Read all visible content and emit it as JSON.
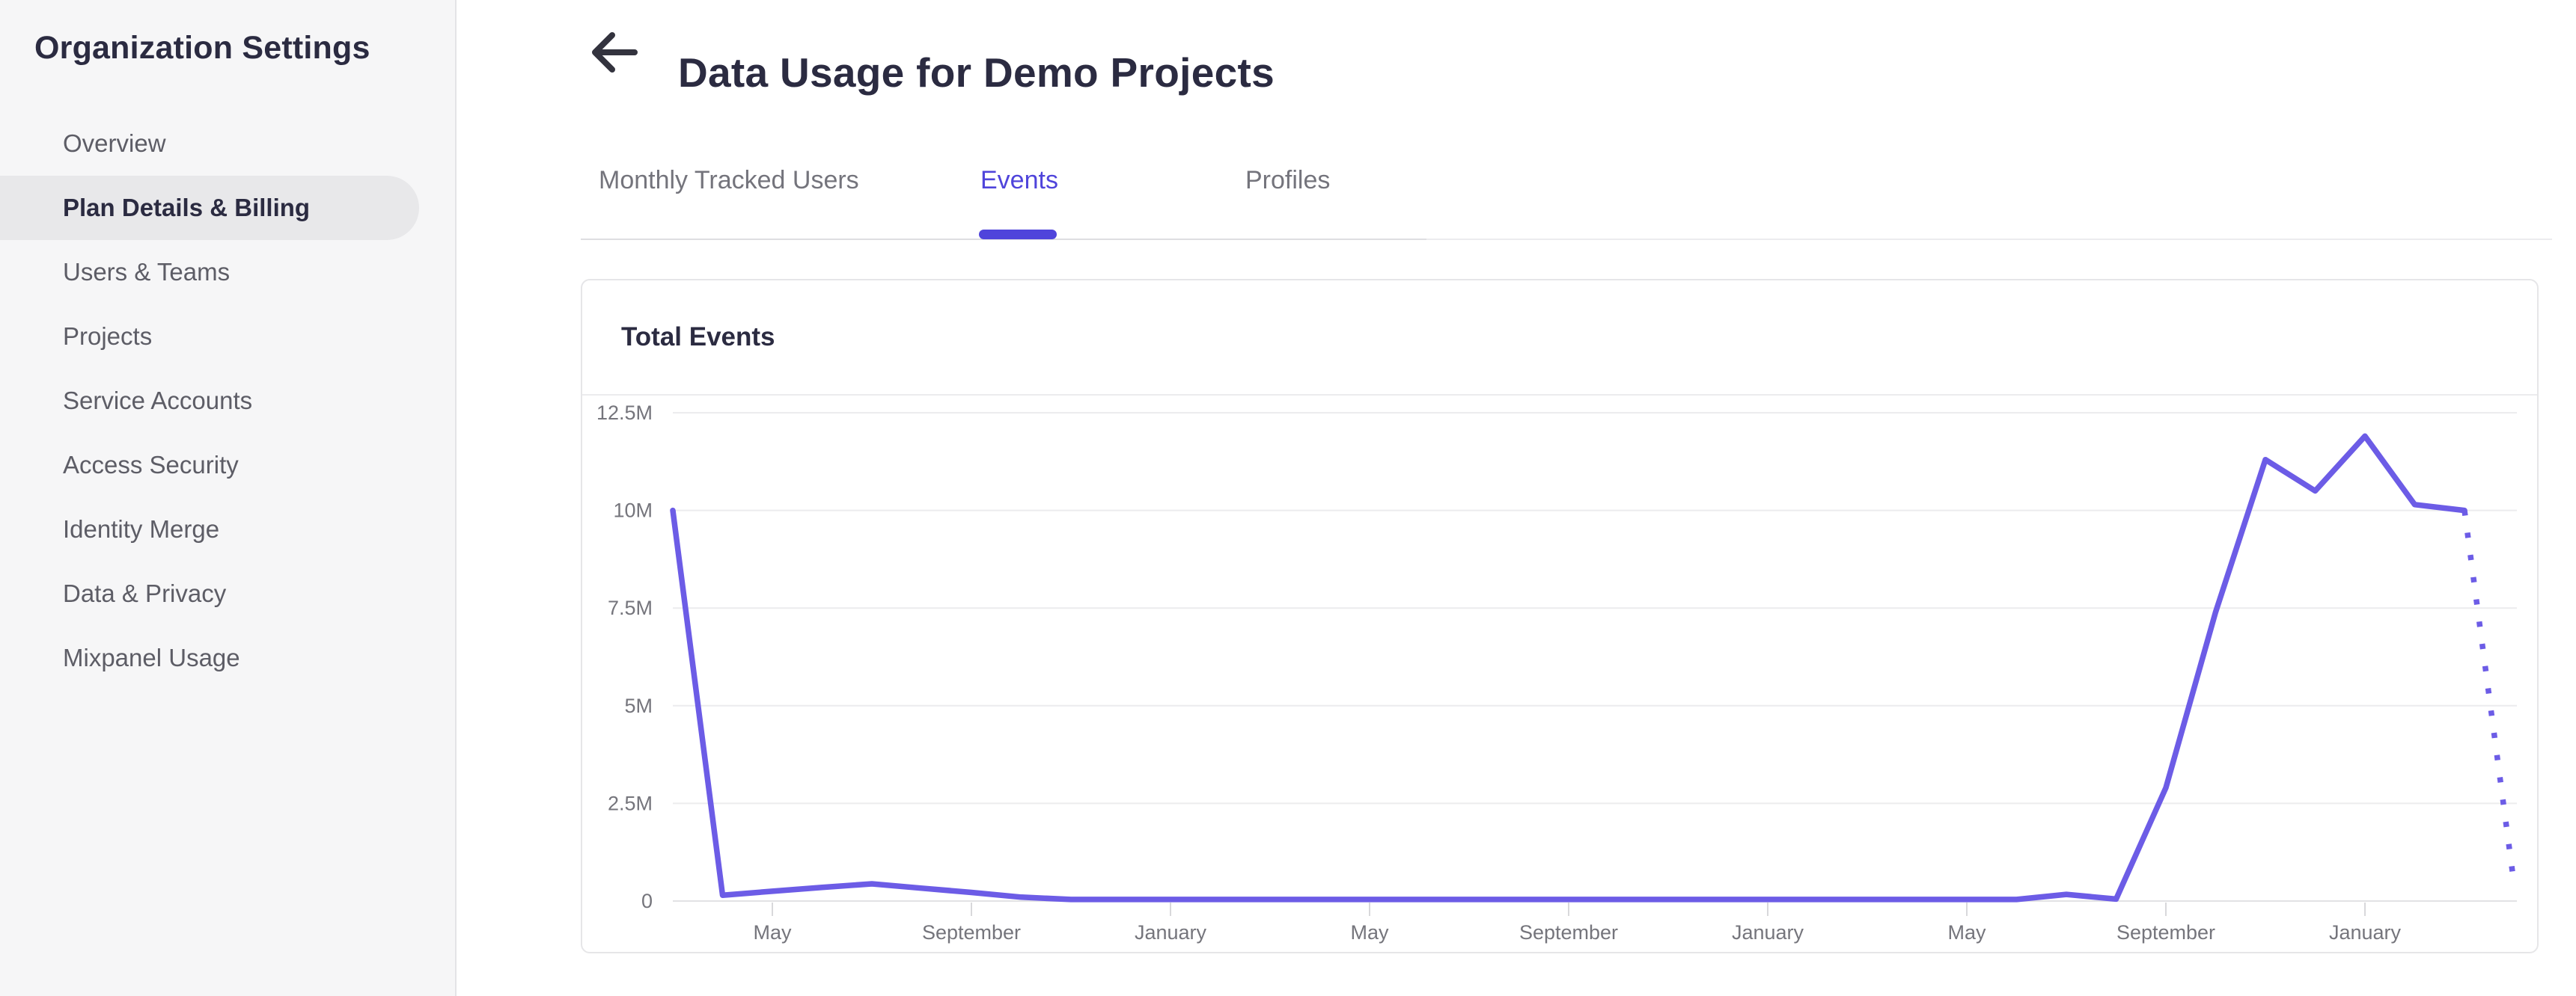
{
  "sidebar": {
    "title": "Organization Settings",
    "items": [
      {
        "label": "Overview",
        "active": false
      },
      {
        "label": "Plan Details & Billing",
        "active": true
      },
      {
        "label": "Users & Teams",
        "active": false
      },
      {
        "label": "Projects",
        "active": false
      },
      {
        "label": "Service Accounts",
        "active": false
      },
      {
        "label": "Access Security",
        "active": false
      },
      {
        "label": "Identity Merge",
        "active": false
      },
      {
        "label": "Data & Privacy",
        "active": false
      },
      {
        "label": "Mixpanel Usage",
        "active": false
      }
    ]
  },
  "header": {
    "title": "Data Usage for Demo Projects"
  },
  "tabs": [
    {
      "label": "Monthly Tracked Users",
      "active": false
    },
    {
      "label": "Events",
      "active": true
    },
    {
      "label": "Profiles",
      "active": false
    }
  ],
  "card": {
    "title": "Total Events"
  },
  "colors": {
    "accent": "#4f44db",
    "line": "#6c5ce6",
    "text_dark": "#2b2b41",
    "text_gray": "#75757c",
    "gridline": "#ececee",
    "axis_line": "#e2e2e4",
    "tick": "#d8d8db"
  },
  "chart_data": {
    "type": "line",
    "title": "Total Events",
    "ylabel": "Total Events",
    "unit": "millions of events per month",
    "ylim": [
      0,
      12.5
    ],
    "grid": true,
    "legend_position": "none",
    "y_tick_labels": [
      "0",
      "2.5M",
      "5M",
      "7.5M",
      "10M",
      "12.5M"
    ],
    "num_points": 38,
    "values_millions": [
      10.0,
      0.15,
      0.25,
      0.35,
      0.44,
      0.33,
      0.22,
      0.1,
      0.04,
      0.04,
      0.04,
      0.04,
      0.04,
      0.04,
      0.04,
      0.04,
      0.04,
      0.04,
      0.04,
      0.04,
      0.04,
      0.04,
      0.04,
      0.04,
      0.04,
      0.04,
      0.04,
      0.04,
      0.17,
      0.05,
      2.9,
      7.4,
      11.3,
      10.5,
      11.9,
      10.15,
      10.0,
      0.4
    ],
    "x_tick_labels": [
      {
        "index": 2,
        "label": "May"
      },
      {
        "index": 6,
        "label": "September"
      },
      {
        "index": 10,
        "label": "January"
      },
      {
        "index": 14,
        "label": "May"
      },
      {
        "index": 18,
        "label": "September"
      },
      {
        "index": 22,
        "label": "January"
      },
      {
        "index": 26,
        "label": "May"
      },
      {
        "index": 30,
        "label": "September"
      },
      {
        "index": 34,
        "label": "January"
      }
    ],
    "dashed_from_index": 36,
    "dashed_note": "final segment rendered as dotted projection"
  }
}
